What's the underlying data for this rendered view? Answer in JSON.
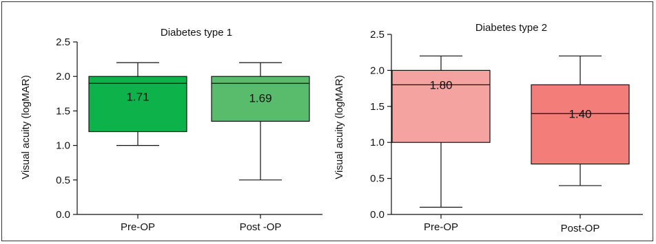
{
  "chart_data": [
    {
      "type": "boxplot",
      "title": "Diabetes type 1",
      "ylabel": "Visual acuity (logMAR)",
      "ylim": [
        0.0,
        2.5
      ],
      "yticks": [
        "0.0",
        "0.5",
        "1.0",
        "1.5",
        "2.0",
        "2.5"
      ],
      "categories": [
        "Pre-OP",
        "Post -OP"
      ],
      "boxes": [
        {
          "category": "Pre-OP",
          "min": 1.0,
          "q1": 1.2,
          "median": 1.9,
          "q3": 2.0,
          "max": 2.2,
          "mean": 1.71,
          "mean_label": "1.71",
          "color": "#0db24b"
        },
        {
          "category": "Post -OP",
          "min": 0.5,
          "q1": 1.35,
          "median": 1.9,
          "q3": 2.0,
          "max": 2.2,
          "mean": 1.69,
          "mean_label": "1.69",
          "color": "#59bb6c"
        }
      ]
    },
    {
      "type": "boxplot",
      "title": "Diabetes type 2",
      "ylabel": "Visual acuity (logMAR)",
      "ylim": [
        0.0,
        2.5
      ],
      "yticks": [
        "0.0",
        "0.5",
        "1.0",
        "1.5",
        "2.0",
        "2.5"
      ],
      "categories": [
        "Pre-OP",
        "Post-OP"
      ],
      "boxes": [
        {
          "category": "Pre-OP",
          "min": 0.1,
          "q1": 1.0,
          "median": 1.8,
          "q3": 2.0,
          "max": 2.2,
          "mean": 1.8,
          "mean_label": "1.80",
          "color": "#f4a3a1"
        },
        {
          "category": "Post-OP",
          "min": 0.4,
          "q1": 0.7,
          "median": 1.4,
          "q3": 1.8,
          "max": 2.2,
          "mean": 1.4,
          "mean_label": "1.40",
          "color": "#f37d78"
        }
      ]
    }
  ]
}
